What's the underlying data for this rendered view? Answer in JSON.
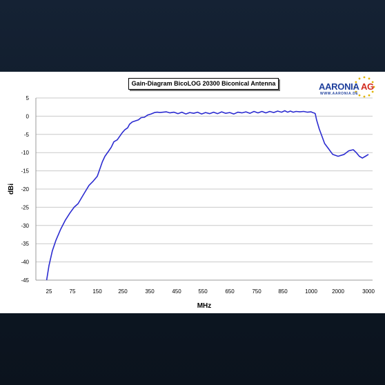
{
  "chart_data": {
    "type": "line",
    "title": "Gain-Diagram BicoLOG 20300 Biconical Antenna",
    "xlabel": "MHz",
    "ylabel": "dBi",
    "categories": [
      "25",
      "75",
      "150",
      "250",
      "350",
      "450",
      "550",
      "650",
      "750",
      "850",
      "1000",
      "2000",
      "3000"
    ],
    "yticks": [
      5,
      0,
      -5,
      -10,
      -15,
      -20,
      -25,
      -30,
      -35,
      -40,
      -45
    ],
    "ylim": [
      -45,
      5
    ],
    "grid": true,
    "series": [
      {
        "color": "#2b2bd0",
        "points": [
          [
            20,
            -45
          ],
          [
            25,
            -41
          ],
          [
            32,
            -37
          ],
          [
            40,
            -34
          ],
          [
            50,
            -31
          ],
          [
            60,
            -28.5
          ],
          [
            70,
            -26.5
          ],
          [
            80,
            -25
          ],
          [
            92,
            -24
          ],
          [
            105,
            -22
          ],
          [
            115,
            -20.5
          ],
          [
            125,
            -19
          ],
          [
            138,
            -17.8
          ],
          [
            150,
            -16.5
          ],
          [
            160,
            -14.5
          ],
          [
            170,
            -12.5
          ],
          [
            180,
            -11
          ],
          [
            195,
            -9.5
          ],
          [
            205,
            -8.5
          ],
          [
            215,
            -7
          ],
          [
            228,
            -6.5
          ],
          [
            238,
            -5.5
          ],
          [
            248,
            -4.5
          ],
          [
            258,
            -3.7
          ],
          [
            268,
            -3.2
          ],
          [
            275,
            -2.2
          ],
          [
            285,
            -1.6
          ],
          [
            300,
            -1.2
          ],
          [
            308,
            -1.0
          ],
          [
            318,
            -0.4
          ],
          [
            330,
            -0.3
          ],
          [
            342,
            0.3
          ],
          [
            355,
            0.6
          ],
          [
            368,
            1.0
          ],
          [
            378,
            1.1
          ],
          [
            388,
            1.0
          ],
          [
            400,
            1.1
          ],
          [
            412,
            1.2
          ],
          [
            425,
            0.9
          ],
          [
            440,
            1.1
          ],
          [
            455,
            0.7
          ],
          [
            470,
            1.1
          ],
          [
            485,
            0.6
          ],
          [
            500,
            1.0
          ],
          [
            515,
            0.8
          ],
          [
            530,
            1.1
          ],
          [
            545,
            0.6
          ],
          [
            560,
            1.0
          ],
          [
            575,
            0.7
          ],
          [
            590,
            1.1
          ],
          [
            605,
            0.7
          ],
          [
            620,
            1.2
          ],
          [
            635,
            0.8
          ],
          [
            650,
            1.0
          ],
          [
            665,
            0.6
          ],
          [
            680,
            1.1
          ],
          [
            695,
            0.9
          ],
          [
            710,
            1.2
          ],
          [
            725,
            0.8
          ],
          [
            740,
            1.3
          ],
          [
            755,
            0.9
          ],
          [
            770,
            1.3
          ],
          [
            785,
            0.9
          ],
          [
            800,
            1.3
          ],
          [
            815,
            1.0
          ],
          [
            830,
            1.4
          ],
          [
            845,
            1.1
          ],
          [
            860,
            1.5
          ],
          [
            875,
            1.1
          ],
          [
            890,
            1.4
          ],
          [
            905,
            1.1
          ],
          [
            920,
            1.3
          ],
          [
            940,
            1.2
          ],
          [
            960,
            1.3
          ],
          [
            980,
            1.1
          ],
          [
            1000,
            1.2
          ],
          [
            1050,
            1.0
          ],
          [
            1100,
            0.9
          ],
          [
            1150,
            0.7
          ],
          [
            1200,
            -1
          ],
          [
            1300,
            -3.5
          ],
          [
            1400,
            -5.5
          ],
          [
            1500,
            -7.5
          ],
          [
            1650,
            -9
          ],
          [
            1800,
            -10.5
          ],
          [
            2000,
            -11
          ],
          [
            2200,
            -10.5
          ],
          [
            2350,
            -9.5
          ],
          [
            2500,
            -9.2
          ],
          [
            2600,
            -10.0
          ],
          [
            2700,
            -11.0
          ],
          [
            2800,
            -11.5
          ],
          [
            2900,
            -11.0
          ],
          [
            3000,
            -10.5
          ]
        ]
      }
    ]
  },
  "logo": {
    "brand_blue": "AAR",
    "brand_blue2": "ONIA",
    "brand_red": "AG",
    "url": "WWW.AARONIA.DE",
    "star_color": "#e0b400"
  }
}
